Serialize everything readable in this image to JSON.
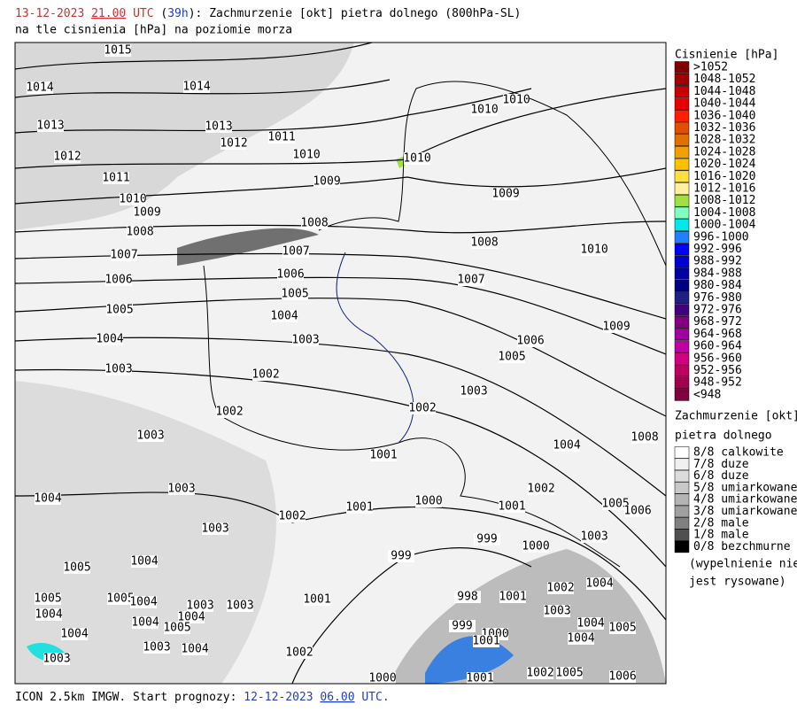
{
  "header": {
    "date": "13-12-2023",
    "hour": "21.00",
    "utc": "UTC",
    "lead": "39h",
    "title": "Zachmurzenie [okt] pietra dolnego (800hPa-SL)",
    "subtitle": "na tle cisnienia [hPa] na poziomie morza"
  },
  "footer": {
    "model": "ICON 2.5km IMGW. Start prognozy:",
    "date": "12-12-2023",
    "hour": "06.00",
    "utc": "UTC."
  },
  "pressure_legend": {
    "title": "Cisnienie [hPa]",
    "entries": [
      {
        "label": ">1052",
        "color": "#800000"
      },
      {
        "label": "1048-1052",
        "color": "#a00000"
      },
      {
        "label": "1044-1048",
        "color": "#c80000"
      },
      {
        "label": "1040-1044",
        "color": "#e80000"
      },
      {
        "label": "1036-1040",
        "color": "#ff2000"
      },
      {
        "label": "1032-1036",
        "color": "#e05000"
      },
      {
        "label": "1028-1032",
        "color": "#e07000"
      },
      {
        "label": "1024-1028",
        "color": "#f0a000"
      },
      {
        "label": "1020-1024",
        "color": "#ffc000"
      },
      {
        "label": "1016-1020",
        "color": "#ffe040"
      },
      {
        "label": "1012-1016",
        "color": "#fff0a0"
      },
      {
        "label": "1008-1012",
        "color": "#a0e040"
      },
      {
        "label": "1004-1008",
        "color": "#80ffc0"
      },
      {
        "label": "1000-1004",
        "color": "#00e8e8"
      },
      {
        "label": "996-1000",
        "color": "#2080ff"
      },
      {
        "label": "992-996",
        "color": "#0000ff"
      },
      {
        "label": "988-992",
        "color": "#0000d0"
      },
      {
        "label": "984-988",
        "color": "#0000a0"
      },
      {
        "label": "980-984",
        "color": "#000080"
      },
      {
        "label": "976-980",
        "color": "#202080"
      },
      {
        "label": "972-976",
        "color": "#400080"
      },
      {
        "label": "968-972",
        "color": "#800080"
      },
      {
        "label": "964-968",
        "color": "#a000a0"
      },
      {
        "label": "960-964",
        "color": "#c000a0"
      },
      {
        "label": "956-960",
        "color": "#d00080"
      },
      {
        "label": "952-956",
        "color": "#c00060"
      },
      {
        "label": "948-952",
        "color": "#a00050"
      },
      {
        "label": "<948",
        "color": "#800040"
      }
    ]
  },
  "cloud_legend": {
    "title": "Zachmurzenie [okt]",
    "subtitle": "pietra dolnego",
    "entries": [
      {
        "label": "8/8 calkowite",
        "color": "#ffffff"
      },
      {
        "label": "7/8 duze",
        "color": "#f0f0f0"
      },
      {
        "label": "6/8 duze",
        "color": "#dcdcdc"
      },
      {
        "label": "5/8 umiarkowane",
        "color": "#c8c8c8"
      },
      {
        "label": "4/8 umiarkowane",
        "color": "#b4b4b4"
      },
      {
        "label": "3/8 umiarkowane",
        "color": "#a0a0a0"
      },
      {
        "label": "2/8 male",
        "color": "#808080"
      },
      {
        "label": "1/8 male",
        "color": "#505050"
      },
      {
        "label": "0/8 bezchmurne",
        "color": "#000000"
      }
    ],
    "note": "(wypelnienie nie",
    "note2": "jest rysowane)"
  },
  "isobar_labels": [
    1015,
    1014,
    1014,
    1013,
    1013,
    1012,
    1011,
    1012,
    1010,
    1010,
    1010,
    1010,
    1011,
    1010,
    1009,
    1009,
    1009,
    1008,
    1008,
    1008,
    1010,
    1007,
    1007,
    1007,
    1006,
    1006,
    1005,
    1005,
    1004,
    1004,
    1003,
    1009,
    1006,
    1005,
    1003,
    1002,
    1003,
    1002,
    1002,
    1003,
    1008,
    1004,
    1001,
    1003,
    1002,
    1004,
    1000,
    1001,
    1001,
    1005,
    1006,
    1002,
    1003,
    1003,
    999,
    1000,
    999,
    1004,
    1005,
    1002,
    1004,
    1001,
    1005,
    998,
    1001,
    1005,
    1004,
    1003,
    1003,
    1003,
    1004,
    1004,
    1004,
    1005,
    1004,
    1005,
    999,
    1000,
    1001,
    1004,
    1004,
    1003,
    1004,
    1002,
    1003,
    1000,
    1001,
    1002,
    1005,
    1006
  ]
}
